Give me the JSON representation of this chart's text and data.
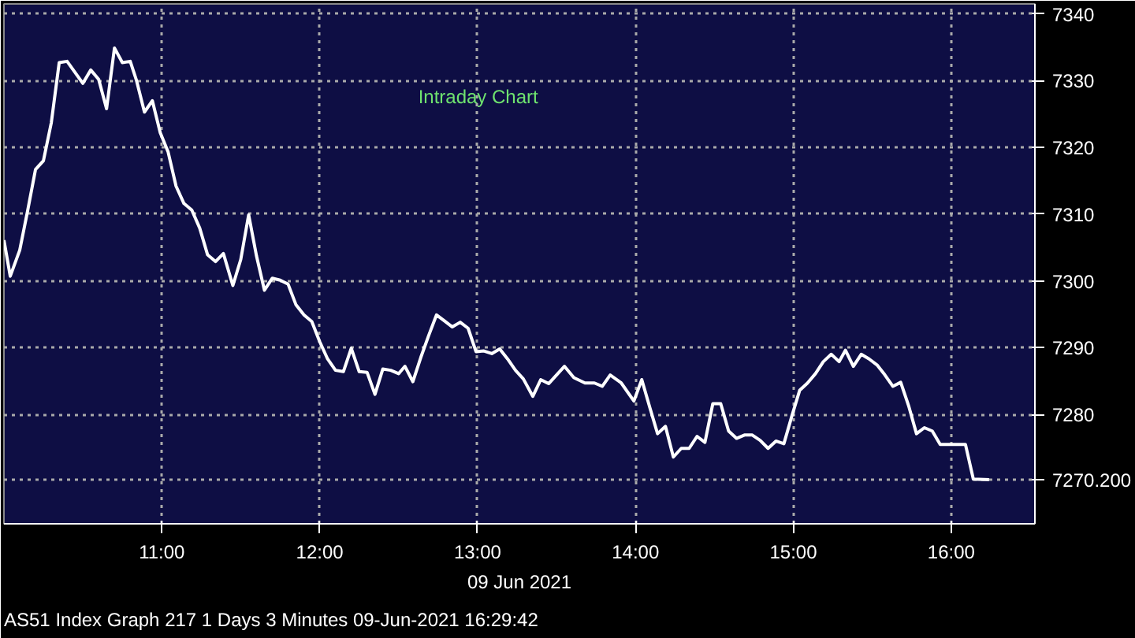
{
  "chart_data": {
    "type": "line",
    "title": "Intraday Chart",
    "xlabel": "09 Jun 2021",
    "x": [
      10.0,
      10.04,
      10.1,
      10.15,
      10.2,
      10.25,
      10.3,
      10.35,
      10.4,
      10.5,
      10.55,
      10.6,
      10.65,
      10.7,
      10.75,
      10.8,
      10.84,
      10.89,
      10.94,
      10.99,
      11.04,
      11.09,
      11.14,
      11.19,
      11.24,
      11.29,
      11.34,
      11.39,
      11.45,
      11.5,
      11.55,
      11.6,
      11.65,
      11.7,
      11.75,
      11.8,
      11.85,
      11.9,
      11.95,
      12.0,
      12.05,
      12.1,
      12.15,
      12.2,
      12.25,
      12.3,
      12.35,
      12.4,
      12.45,
      12.5,
      12.54,
      12.59,
      12.64,
      12.69,
      12.74,
      12.79,
      12.84,
      12.89,
      12.94,
      12.99,
      13.04,
      13.09,
      13.14,
      13.19,
      13.24,
      13.29,
      13.35,
      13.4,
      13.45,
      13.5,
      13.55,
      13.61,
      13.68,
      13.74,
      13.79,
      13.84,
      13.91,
      13.99,
      14.04,
      14.09,
      14.14,
      14.19,
      14.24,
      14.29,
      14.34,
      14.39,
      14.44,
      14.49,
      14.54,
      14.59,
      14.64,
      14.69,
      14.74,
      14.79,
      14.84,
      14.89,
      14.94,
      14.99,
      15.04,
      15.09,
      15.14,
      15.19,
      15.24,
      15.29,
      15.33,
      15.38,
      15.43,
      15.48,
      15.53,
      15.58,
      15.63,
      15.68,
      15.73,
      15.78,
      15.83,
      15.88,
      15.93,
      15.98,
      16.03,
      16.09,
      16.14,
      16.24
    ],
    "series": [
      {
        "color": "#ffffff",
        "values": [
          7306.1,
          7300.7,
          7304.6,
          7310.5,
          7316.7,
          7318.0,
          7323.7,
          7332.7,
          7332.9,
          7329.6,
          7331.6,
          7330.2,
          7325.8,
          7334.9,
          7332.7,
          7332.9,
          7330.0,
          7325.3,
          7327.0,
          7322.2,
          7319.3,
          7314.2,
          7311.6,
          7310.6,
          7307.9,
          7303.9,
          7302.9,
          7304.1,
          7299.3,
          7303.2,
          7309.9,
          7303.7,
          7298.6,
          7300.4,
          7300.1,
          7299.5,
          7296.4,
          7294.9,
          7293.9,
          7290.9,
          7288.3,
          7286.6,
          7286.4,
          7289.9,
          7286.4,
          7286.3,
          7283.0,
          7286.8,
          7286.6,
          7286.1,
          7287.2,
          7284.9,
          7288.5,
          7291.8,
          7294.9,
          7294.0,
          7293.1,
          7293.8,
          7292.9,
          7289.4,
          7289.5,
          7289.1,
          7289.8,
          7288.3,
          7286.6,
          7285.3,
          7282.7,
          7285.2,
          7284.6,
          7285.9,
          7287.2,
          7285.5,
          7284.7,
          7284.7,
          7284.2,
          7285.9,
          7284.7,
          7282.0,
          7285.2,
          7281.1,
          7277.1,
          7278.2,
          7273.6,
          7274.9,
          7274.9,
          7276.7,
          7275.8,
          7281.6,
          7281.6,
          7277.5,
          7276.4,
          7276.9,
          7276.9,
          7276.1,
          7274.9,
          7276.0,
          7275.6,
          7279.7,
          7283.6,
          7284.7,
          7286.1,
          7287.9,
          7289.0,
          7287.9,
          7289.6,
          7287.2,
          7289.0,
          7288.3,
          7287.4,
          7285.9,
          7284.2,
          7284.8,
          7281.3,
          7277.1,
          7278.0,
          7277.5,
          7275.5,
          7275.5,
          7275.5,
          7275.5,
          7270.3,
          7270.2
        ]
      }
    ],
    "xlim": [
      10.0,
      16.53
    ],
    "ylim": [
      7263.6,
      7341.5
    ],
    "xticks": [
      {
        "value": 11,
        "label": "11:00"
      },
      {
        "value": 12,
        "label": "12:00"
      },
      {
        "value": 13,
        "label": "13:00"
      },
      {
        "value": 14,
        "label": "14:00"
      },
      {
        "value": 15,
        "label": "15:00"
      },
      {
        "value": 16,
        "label": "16:00"
      }
    ],
    "yticks": [
      {
        "value": 7270.2,
        "label": "7270.200"
      },
      7280,
      7290,
      7300,
      7310,
      7320,
      7330,
      7340
    ],
    "grid": true,
    "line_style": "solid",
    "annotations": [
      "AS51 Index Graph 217 1 Days 3 Minutes 09-Jun-2021 16:29:42"
    ]
  }
}
